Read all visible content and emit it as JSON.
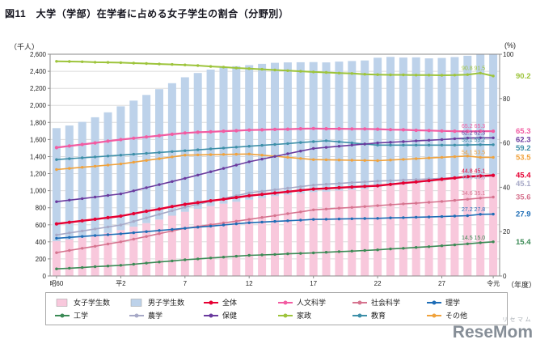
{
  "page": {
    "title": "図11　大学（学部）在学者に占める女子学生の割合（分野別）"
  },
  "axes": {
    "left_unit": "（千人）",
    "right_unit": "(%)",
    "x_unit": "（年度）",
    "left_tick_values": [
      0,
      200,
      400,
      600,
      800,
      1000,
      1200,
      1400,
      1600,
      1800,
      2000,
      2200,
      2400,
      2600
    ],
    "left_tick_labels": [
      "0",
      "200",
      "400",
      "600",
      "800",
      "1,000",
      "1,200",
      "1,400",
      "1,600",
      "1,800",
      "2,000",
      "2,200",
      "2,400",
      "2,600"
    ],
    "right_tick_values": [
      0,
      20,
      40,
      60,
      80,
      100
    ],
    "right_tick_labels": [
      "0",
      "20",
      "40",
      "60",
      "80",
      "100"
    ]
  },
  "chart_data": {
    "type": "bar+line",
    "left_axis_max": 2600,
    "right_axis_max": 100,
    "x_note": "年度：昭和60年〜令和元年（35年分）",
    "x_ticks": [
      {
        "i": 0,
        "label": "昭60"
      },
      {
        "i": 5,
        "label": "平2"
      },
      {
        "i": 10,
        "label": "7"
      },
      {
        "i": 15,
        "label": "12"
      },
      {
        "i": 20,
        "label": "17"
      },
      {
        "i": 25,
        "label": "22"
      },
      {
        "i": 30,
        "label": "27"
      },
      {
        "i": 34,
        "label": "令元"
      }
    ],
    "bars": {
      "female": {
        "key": "female",
        "label": "女子学生数",
        "color": "#f8c8dc",
        "values": [
          408,
          427,
          450,
          476,
          505,
          537,
          578,
          620,
          661,
          707,
          753,
          788,
          820,
          848,
          871,
          895,
          915,
          935,
          952,
          967,
          983,
          989,
          1001,
          1011,
          1021,
          1042,
          1061,
          1073,
          1087,
          1097,
          1114,
          1135,
          1157,
          1172,
          1185
        ]
      },
      "male": {
        "key": "male",
        "label": "男子学生数",
        "color": "#bdd2ea",
        "values": [
          1326,
          1337,
          1357,
          1385,
          1414,
          1452,
          1478,
          1503,
          1529,
          1553,
          1577,
          1592,
          1600,
          1602,
          1589,
          1577,
          1572,
          1564,
          1552,
          1539,
          1525,
          1515,
          1513,
          1509,
          1506,
          1517,
          1508,
          1488,
          1476,
          1455,
          1442,
          1432,
          1425,
          1427,
          1424
        ]
      }
    },
    "series": [
      {
        "key": "kasei",
        "label": "家政",
        "color": "#9dc43b",
        "width": 2.0,
        "end_label": "90.2",
        "recent_label": "90.8 91.5",
        "values": [
          96.8,
          96.7,
          96.6,
          96.4,
          96.3,
          96.2,
          96.0,
          95.8,
          95.6,
          95.4,
          95.2,
          94.9,
          94.5,
          94.2,
          93.8,
          93.5,
          93.2,
          92.9,
          92.6,
          92.3,
          92.0,
          91.8,
          91.5,
          91.3,
          91.0,
          90.8,
          90.7,
          90.7,
          90.6,
          90.6,
          90.5,
          90.6,
          90.8,
          91.5,
          90.2
        ]
      },
      {
        "key": "sonota",
        "label": "その他",
        "color": "#f0a23c",
        "width": 1.6,
        "end_label": "53.5",
        "recent_label": "54.1 53.5",
        "values": [
          48.0,
          48.5,
          49.0,
          49.5,
          50.0,
          50.5,
          51.3,
          52.1,
          52.9,
          53.7,
          54.5,
          54.6,
          54.7,
          54.8,
          54.9,
          55.0,
          54.5,
          54.0,
          53.5,
          53.0,
          52.5,
          52.4,
          52.3,
          52.2,
          52.1,
          52.0,
          52.3,
          52.6,
          52.9,
          53.2,
          53.5,
          53.8,
          54.1,
          53.5,
          53.5
        ]
      },
      {
        "key": "kyoiku",
        "label": "教育",
        "color": "#3d8fa8",
        "width": 1.6,
        "end_label": "59.2",
        "recent_label": "59.1 59.2",
        "values": [
          52.5,
          52.9,
          53.3,
          53.7,
          54.1,
          54.5,
          54.9,
          55.3,
          55.7,
          56.1,
          56.5,
          56.9,
          57.3,
          57.7,
          58.1,
          58.5,
          58.9,
          59.3,
          59.7,
          60.2,
          60.6,
          61.0,
          60.5,
          60.0,
          59.5,
          59.0,
          59.0,
          59.0,
          59.0,
          59.0,
          59.0,
          59.0,
          59.1,
          59.2,
          59.2
        ]
      },
      {
        "key": "hoken",
        "label": "保健",
        "color": "#6a3a9e",
        "width": 1.6,
        "end_label": "62.3",
        "recent_label": "62.2 62.3",
        "values": [
          33.5,
          34.2,
          34.9,
          35.6,
          36.3,
          37.0,
          38.4,
          39.8,
          41.2,
          42.6,
          44.0,
          45.5,
          47.0,
          48.5,
          50.0,
          51.5,
          52.7,
          53.9,
          55.1,
          56.3,
          57.5,
          58.0,
          58.5,
          59.0,
          59.5,
          60.0,
          60.3,
          60.6,
          60.9,
          61.2,
          61.5,
          61.9,
          62.2,
          62.3,
          62.3
        ]
      },
      {
        "key": "nogaku",
        "label": "農学",
        "color": "#a7a9c7",
        "width": 1.6,
        "end_label": "45.1",
        "recent_label": "44.5 44.8",
        "values": [
          18.5,
          19.4,
          20.3,
          21.2,
          22.1,
          23.0,
          24.6,
          26.2,
          27.8,
          29.4,
          31.0,
          32.3,
          33.6,
          34.9,
          36.2,
          37.5,
          38.2,
          38.9,
          39.6,
          40.3,
          41.0,
          41.4,
          41.7,
          42.1,
          42.4,
          42.8,
          43.0,
          43.3,
          43.5,
          43.8,
          44.0,
          44.3,
          44.5,
          44.8,
          45.1
        ]
      },
      {
        "key": "shakai",
        "label": "社会科学",
        "color": "#d6748f",
        "width": 1.6,
        "end_label": "35.6",
        "recent_label": "34.6 35.1",
        "values": [
          10.5,
          11.5,
          12.5,
          13.4,
          14.4,
          15.4,
          16.6,
          17.8,
          19.1,
          20.3,
          21.5,
          22.3,
          23.1,
          23.9,
          24.7,
          25.5,
          26.4,
          27.2,
          28.1,
          28.9,
          29.8,
          30.2,
          30.6,
          30.9,
          31.3,
          31.7,
          32.1,
          32.5,
          32.8,
          33.2,
          33.6,
          34.1,
          34.6,
          35.1,
          35.6
        ]
      },
      {
        "key": "rigaku",
        "label": "理学",
        "color": "#1e6db6",
        "width": 1.6,
        "end_label": "27.9",
        "recent_label": "27.2 27.8",
        "values": [
          17.0,
          17.4,
          17.8,
          18.2,
          18.6,
          19.0,
          19.5,
          20.0,
          20.5,
          21.0,
          21.5,
          22.0,
          22.5,
          23.0,
          23.5,
          24.0,
          24.3,
          24.6,
          24.9,
          25.2,
          25.5,
          25.6,
          25.7,
          25.8,
          25.9,
          26.0,
          26.2,
          26.3,
          26.5,
          26.6,
          26.8,
          27.0,
          27.2,
          27.8,
          27.9
        ]
      },
      {
        "key": "kogaku",
        "label": "工学",
        "color": "#3b8a55",
        "width": 1.6,
        "end_label": "15.4",
        "recent_label": "14.5 15.0",
        "values": [
          3.2,
          3.5,
          3.8,
          4.2,
          4.5,
          4.8,
          5.3,
          5.8,
          6.3,
          6.8,
          7.3,
          7.7,
          8.1,
          8.5,
          8.9,
          9.3,
          9.5,
          9.7,
          10.0,
          10.2,
          10.4,
          10.7,
          11.0,
          11.2,
          11.5,
          11.8,
          12.2,
          12.5,
          12.9,
          13.2,
          13.6,
          14.0,
          14.5,
          15.0,
          15.4
        ]
      },
      {
        "key": "jinbun",
        "label": "人文科学",
        "color": "#f25ca2",
        "width": 2.2,
        "end_label": "65.3",
        "recent_label": "65.2 65.3",
        "values": [
          57.9,
          58.6,
          59.3,
          60.0,
          60.8,
          61.5,
          62.1,
          62.7,
          63.3,
          63.9,
          64.5,
          64.8,
          65.0,
          65.3,
          65.5,
          65.8,
          65.9,
          66.1,
          66.2,
          66.4,
          66.5,
          66.4,
          66.4,
          66.3,
          66.3,
          66.2,
          66.0,
          65.9,
          65.7,
          65.6,
          65.4,
          65.3,
          65.2,
          65.3,
          65.3
        ]
      },
      {
        "key": "zentai",
        "label": "全体",
        "color": "#e60033",
        "width": 2.4,
        "end_label": "45.4",
        "recent_label": "44.8 45.1",
        "values": [
          23.5,
          24.2,
          24.9,
          25.6,
          26.3,
          27.0,
          28.1,
          29.2,
          30.2,
          31.3,
          32.3,
          33.1,
          33.9,
          34.6,
          35.4,
          36.2,
          36.8,
          37.4,
          38.0,
          38.6,
          39.2,
          39.5,
          39.8,
          40.1,
          40.4,
          40.7,
          41.3,
          41.9,
          42.4,
          43.0,
          43.6,
          44.2,
          44.8,
          45.1,
          45.4
        ]
      }
    ]
  },
  "legend": {
    "items": [
      {
        "key": "female",
        "label": "女子学生数",
        "marker": "bar",
        "color": "#f8c8dc"
      },
      {
        "key": "male",
        "label": "男子学生数",
        "marker": "bar",
        "color": "#bdd2ea"
      },
      {
        "key": "zentai",
        "label": "全体",
        "marker": "line",
        "color": "#e60033"
      },
      {
        "key": "jinbun",
        "label": "人文科学",
        "marker": "line",
        "color": "#f25ca2"
      },
      {
        "key": "shakai",
        "label": "社会科学",
        "marker": "line",
        "color": "#d6748f"
      },
      {
        "key": "rigaku",
        "label": "理学",
        "marker": "line",
        "color": "#1e6db6"
      },
      {
        "key": "kogaku",
        "label": "工学",
        "marker": "line",
        "color": "#3b8a55"
      },
      {
        "key": "nogaku",
        "label": "農学",
        "marker": "line",
        "color": "#a7a9c7"
      },
      {
        "key": "hoken",
        "label": "保健",
        "marker": "line",
        "color": "#6a3a9e"
      },
      {
        "key": "kasei",
        "label": "家政",
        "marker": "line",
        "color": "#9dc43b"
      },
      {
        "key": "kyoiku",
        "label": "教育",
        "marker": "line",
        "color": "#3d8fa8"
      },
      {
        "key": "sonota",
        "label": "その他",
        "marker": "line",
        "color": "#f0a23c"
      }
    ]
  },
  "watermark": {
    "kana": "リセマム",
    "name": "ReseMom"
  }
}
